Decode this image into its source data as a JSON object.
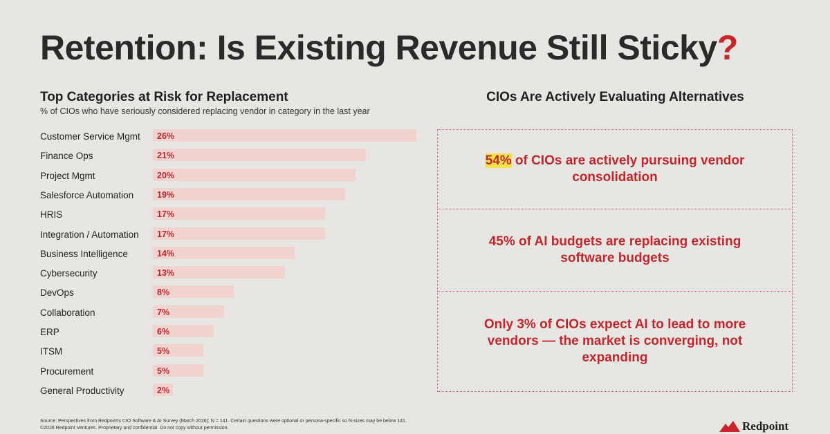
{
  "title": {
    "main": "Retention: Is Existing Revenue Still Sticky",
    "mark": "?"
  },
  "chart_data": {
    "type": "bar",
    "title": "Top Categories at Risk for Replacement",
    "subtitle": "% of CIOs who have seriously considered replacing vendor in category in the last year",
    "categories": [
      "Customer Service Mgmt",
      "Finance Ops",
      "Project Mgmt",
      "Salesforce Automation",
      "HRIS",
      "Integration / Automation",
      "Business Intelligence",
      "Cybersecurity",
      "DevOps",
      "Collaboration",
      "ERP",
      "ITSM",
      "Procurement",
      "General Productivity"
    ],
    "values": [
      26,
      21,
      20,
      19,
      17,
      17,
      14,
      13,
      8,
      7,
      6,
      5,
      5,
      2
    ],
    "value_labels": [
      "26%",
      "21%",
      "20%",
      "19%",
      "17%",
      "17%",
      "14%",
      "13%",
      "8%",
      "7%",
      "6%",
      "5%",
      "5%",
      "2%"
    ],
    "orientation": "horizontal",
    "bar_color": "#f1d3d0",
    "label_color": "#c0272d"
  },
  "right": {
    "heading": "CIOs Are Actively Evaluating Alternatives",
    "stat1_highlight": "54%",
    "stat1_rest": " of CIOs are actively pursuing vendor consolidation",
    "stat2": "45% of AI budgets are replacing existing software budgets",
    "stat3": "Only 3% of CIOs expect AI to lead to more vendors — the market is converging, not expanding"
  },
  "footer": {
    "source": "Source: Perspectives from Redpoint's CIO Software & AI Survey (March 2026); N = 141. Certain questions were optional or persona-specific so  N-sizes may be below 141.",
    "copyright": "©2026 Redpoint Ventures. Proprietary and confidential. Do not copy without permission.",
    "logo": "Redpoint"
  },
  "colors": {
    "accent": "#c8262b",
    "background": "#e8e6e3",
    "highlight": "#f3e04a"
  }
}
